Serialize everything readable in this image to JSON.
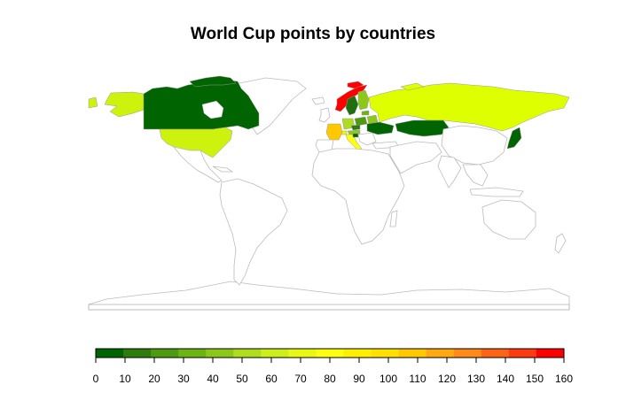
{
  "title": "World Cup points by countries",
  "legend": {
    "tick_labels": [
      "0",
      "10",
      "20",
      "30",
      "40",
      "50",
      "60",
      "70",
      "80",
      "90",
      "100",
      "110",
      "120",
      "130",
      "140",
      "150",
      "160"
    ],
    "colors": [
      "#006400",
      "#2e7d0c",
      "#4e9a10",
      "#6cb414",
      "#8cc81a",
      "#aedc1e",
      "#ccee1a",
      "#e8f814",
      "#fcff10",
      "#fff000",
      "#ffe000",
      "#ffc800",
      "#ffa810",
      "#ff8a18",
      "#ff6416",
      "#ff3a10",
      "#ff0000"
    ]
  },
  "map_data": {
    "type": "choropleth",
    "value_range": [
      0,
      160
    ],
    "regions": [
      {
        "name": "Alaska (USA)",
        "color": "#ccf20e"
      },
      {
        "name": "Canada",
        "color": "#006400"
      },
      {
        "name": "United States",
        "color": "#ccf20e"
      },
      {
        "name": "Greenland",
        "color": "#ffffff"
      },
      {
        "name": "Norway",
        "color": "#ff0000"
      },
      {
        "name": "Sweden",
        "color": "#1f6f10"
      },
      {
        "name": "Finland",
        "color": "#8cc81a"
      },
      {
        "name": "Russia",
        "color": "#ddff00"
      },
      {
        "name": "Kazakhstan",
        "color": "#006400"
      },
      {
        "name": "Japan",
        "color": "#006400"
      },
      {
        "name": "France",
        "color": "#ffc800"
      },
      {
        "name": "Switzerland",
        "color": "#e8f814"
      },
      {
        "name": "Italy",
        "color": "#fcff10"
      },
      {
        "name": "Germany",
        "color": "#aedc1e"
      },
      {
        "name": "Estonia",
        "color": "#6cb414"
      },
      {
        "name": "Poland",
        "color": "#4e9a10"
      },
      {
        "name": "Czech Republic",
        "color": "#2e7d0c"
      },
      {
        "name": "Austria",
        "color": "#8cc81a"
      },
      {
        "name": "Slovenia",
        "color": "#006400"
      },
      {
        "name": "Ukraine",
        "color": "#006400"
      },
      {
        "name": "Belarus",
        "color": "#8cc81a"
      }
    ]
  }
}
